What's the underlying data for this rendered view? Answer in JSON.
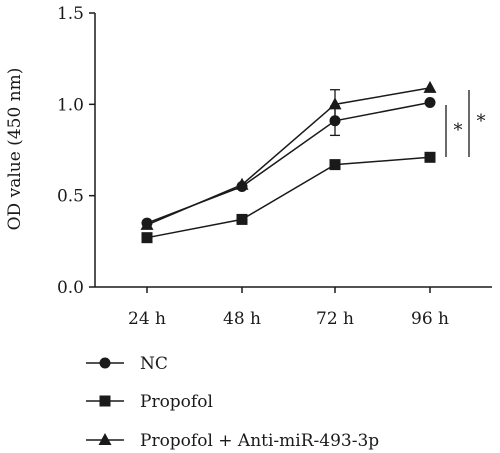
{
  "chart_data": {
    "type": "line",
    "title": "",
    "xlabel": "",
    "ylabel": "OD value (450 nm)",
    "categories": [
      "24 h",
      "48 h",
      "72 h",
      "96 h"
    ],
    "ylim": [
      0,
      1.5
    ],
    "yticks": [
      0.0,
      0.5,
      1.0,
      1.5
    ],
    "ytick_labels": [
      "0.0",
      "0.5",
      "1.0",
      "1.5"
    ],
    "grid": false,
    "legend_placement": "bottom",
    "series": [
      {
        "name": "NC",
        "marker": "circle",
        "values": [
          0.35,
          0.55,
          0.91,
          1.01
        ],
        "errors": [
          0,
          0,
          0.08,
          0
        ]
      },
      {
        "name": "Propofol",
        "marker": "square",
        "values": [
          0.27,
          0.37,
          0.67,
          0.71
        ],
        "errors": [
          0,
          0,
          0,
          0
        ]
      },
      {
        "name": "Propofol + Anti-miR-493-3p",
        "marker": "triangle",
        "values": [
          0.34,
          0.56,
          1.0,
          1.09
        ],
        "errors": [
          0,
          0,
          0.08,
          0
        ]
      }
    ],
    "annotations": [
      "*",
      "*"
    ],
    "line_color": "#1a1a1a"
  }
}
